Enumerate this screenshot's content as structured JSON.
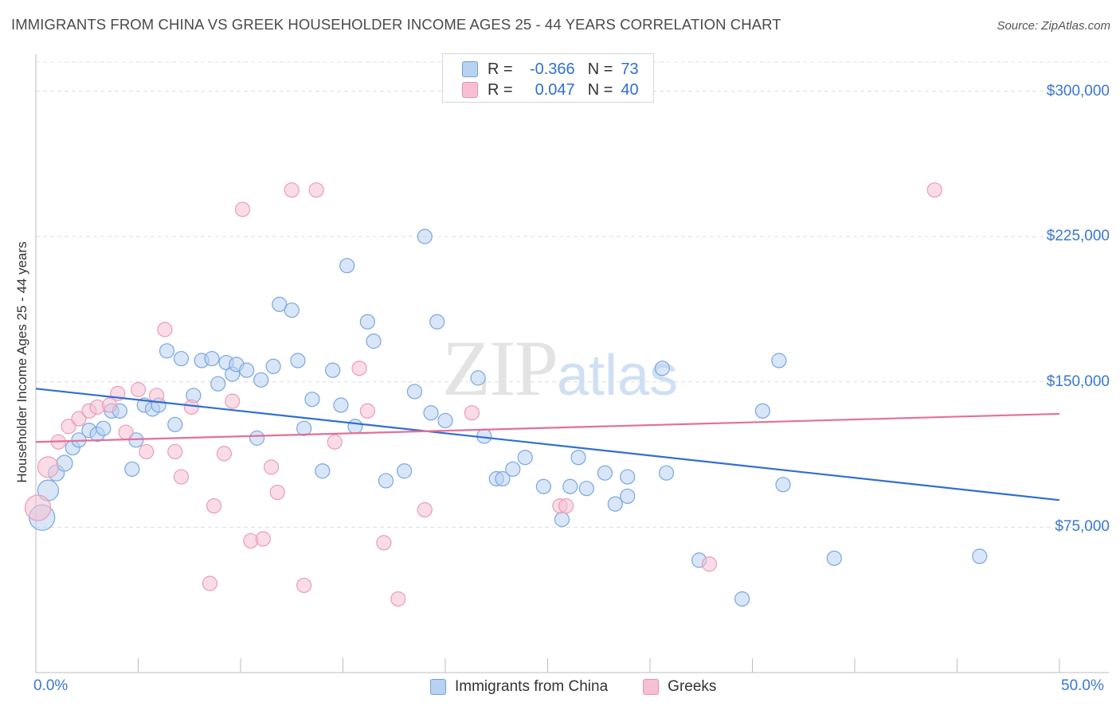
{
  "title": "IMMIGRANTS FROM CHINA VS GREEK HOUSEHOLDER INCOME AGES 25 - 44 YEARS CORRELATION CHART",
  "source": "Source: ZipAtlas.com",
  "watermark": {
    "zip": "ZIP",
    "atlas": "atlas"
  },
  "colors": {
    "blue": "#2f6fd0",
    "blue_fill": "#b8d2f2",
    "pink": "#e46f97",
    "pink_fill": "#f6c0d2",
    "grid": "#dddddd"
  },
  "legend": {
    "rows": [
      {
        "r_label": "R =",
        "r_value": "-0.366",
        "n_label": "N =",
        "n_value": "73"
      },
      {
        "r_label": "R =",
        "r_value": "0.047",
        "n_label": "N =",
        "n_value": "40"
      }
    ]
  },
  "chart_data": {
    "type": "scatter",
    "title": "IMMIGRANTS FROM CHINA VS GREEK HOUSEHOLDER INCOME AGES 25 - 44 YEARS CORRELATION CHART",
    "xlabel": "",
    "ylabel": "Householder Income Ages 25 - 44 years",
    "xlim": [
      0,
      50
    ],
    "ylim": [
      0,
      315000
    ],
    "x_tick_labels": [
      "0.0%",
      "50.0%"
    ],
    "y_ticks": [
      75000,
      150000,
      225000,
      300000
    ],
    "y_tick_labels": [
      "$75,000",
      "$150,000",
      "$225,000",
      "$300,000"
    ],
    "legend_position": "top-center",
    "series": [
      {
        "name": "Immigrants from China",
        "color": "#2f6fd0",
        "R": -0.366,
        "N": 73,
        "trend": {
          "x": [
            0,
            50
          ],
          "y": [
            146500,
            89000
          ]
        },
        "points": [
          {
            "x": 0.3,
            "y": 80000,
            "s": 16
          },
          {
            "x": 0.6,
            "y": 94000,
            "s": 13
          },
          {
            "x": 1.0,
            "y": 103000,
            "s": 10
          },
          {
            "x": 1.4,
            "y": 108000,
            "s": 10
          },
          {
            "x": 1.8,
            "y": 116000,
            "s": 9
          },
          {
            "x": 2.1,
            "y": 120000,
            "s": 9
          },
          {
            "x": 2.6,
            "y": 125000,
            "s": 9
          },
          {
            "x": 3.0,
            "y": 123000,
            "s": 9
          },
          {
            "x": 3.3,
            "y": 126000,
            "s": 9
          },
          {
            "x": 3.7,
            "y": 135000,
            "s": 9
          },
          {
            "x": 4.1,
            "y": 135000,
            "s": 9
          },
          {
            "x": 4.7,
            "y": 105000,
            "s": 9
          },
          {
            "x": 4.9,
            "y": 120000,
            "s": 9
          },
          {
            "x": 5.3,
            "y": 138000,
            "s": 9
          },
          {
            "x": 5.7,
            "y": 136000,
            "s": 9
          },
          {
            "x": 6.0,
            "y": 138000,
            "s": 9
          },
          {
            "x": 6.4,
            "y": 166000,
            "s": 9
          },
          {
            "x": 6.8,
            "y": 128000,
            "s": 9
          },
          {
            "x": 7.1,
            "y": 162000,
            "s": 9
          },
          {
            "x": 7.7,
            "y": 143000,
            "s": 9
          },
          {
            "x": 8.1,
            "y": 161000,
            "s": 9
          },
          {
            "x": 8.6,
            "y": 162000,
            "s": 9
          },
          {
            "x": 8.9,
            "y": 149000,
            "s": 9
          },
          {
            "x": 9.3,
            "y": 160000,
            "s": 9
          },
          {
            "x": 9.6,
            "y": 154000,
            "s": 9
          },
          {
            "x": 9.8,
            "y": 159000,
            "s": 9
          },
          {
            "x": 10.3,
            "y": 156000,
            "s": 9
          },
          {
            "x": 10.8,
            "y": 121000,
            "s": 9
          },
          {
            "x": 11.0,
            "y": 151000,
            "s": 9
          },
          {
            "x": 11.6,
            "y": 158000,
            "s": 9
          },
          {
            "x": 11.9,
            "y": 190000,
            "s": 9
          },
          {
            "x": 12.5,
            "y": 187000,
            "s": 9
          },
          {
            "x": 12.8,
            "y": 161000,
            "s": 9
          },
          {
            "x": 13.1,
            "y": 126000,
            "s": 9
          },
          {
            "x": 13.5,
            "y": 141000,
            "s": 9
          },
          {
            "x": 14.0,
            "y": 104000,
            "s": 9
          },
          {
            "x": 14.5,
            "y": 156000,
            "s": 9
          },
          {
            "x": 14.9,
            "y": 138000,
            "s": 9
          },
          {
            "x": 15.2,
            "y": 210000,
            "s": 9
          },
          {
            "x": 15.6,
            "y": 127000,
            "s": 9
          },
          {
            "x": 16.2,
            "y": 181000,
            "s": 9
          },
          {
            "x": 16.5,
            "y": 171000,
            "s": 9
          },
          {
            "x": 17.1,
            "y": 99000,
            "s": 9
          },
          {
            "x": 18.0,
            "y": 104000,
            "s": 9
          },
          {
            "x": 18.5,
            "y": 145000,
            "s": 9
          },
          {
            "x": 19.0,
            "y": 225000,
            "s": 9
          },
          {
            "x": 19.3,
            "y": 134000,
            "s": 9
          },
          {
            "x": 19.6,
            "y": 181000,
            "s": 9
          },
          {
            "x": 20.0,
            "y": 130000,
            "s": 9
          },
          {
            "x": 21.6,
            "y": 152000,
            "s": 9
          },
          {
            "x": 21.9,
            "y": 122000,
            "s": 9
          },
          {
            "x": 22.5,
            "y": 100000,
            "s": 9
          },
          {
            "x": 22.8,
            "y": 100000,
            "s": 9
          },
          {
            "x": 23.3,
            "y": 105000,
            "s": 9
          },
          {
            "x": 23.9,
            "y": 111000,
            "s": 9
          },
          {
            "x": 24.8,
            "y": 96000,
            "s": 9
          },
          {
            "x": 25.7,
            "y": 79000,
            "s": 9
          },
          {
            "x": 26.1,
            "y": 96000,
            "s": 9
          },
          {
            "x": 26.5,
            "y": 111000,
            "s": 9
          },
          {
            "x": 26.9,
            "y": 95000,
            "s": 9
          },
          {
            "x": 27.8,
            "y": 103000,
            "s": 9
          },
          {
            "x": 28.3,
            "y": 87000,
            "s": 9
          },
          {
            "x": 28.9,
            "y": 91000,
            "s": 9
          },
          {
            "x": 28.9,
            "y": 101000,
            "s": 9
          },
          {
            "x": 30.6,
            "y": 157000,
            "s": 9
          },
          {
            "x": 30.8,
            "y": 103000,
            "s": 9
          },
          {
            "x": 32.4,
            "y": 58000,
            "s": 9
          },
          {
            "x": 34.5,
            "y": 38000,
            "s": 9
          },
          {
            "x": 35.5,
            "y": 135000,
            "s": 9
          },
          {
            "x": 36.3,
            "y": 161000,
            "s": 9
          },
          {
            "x": 36.5,
            "y": 97000,
            "s": 9
          },
          {
            "x": 39.0,
            "y": 59000,
            "s": 9
          },
          {
            "x": 46.1,
            "y": 60000,
            "s": 9
          }
        ]
      },
      {
        "name": "Greeks",
        "color": "#e46f97",
        "R": 0.047,
        "N": 40,
        "trend": {
          "x": [
            0,
            50
          ],
          "y": [
            119000,
            133500
          ]
        },
        "points": [
          {
            "x": 0.1,
            "y": 85000,
            "s": 16
          },
          {
            "x": 0.6,
            "y": 106000,
            "s": 13
          },
          {
            "x": 1.1,
            "y": 119000,
            "s": 9
          },
          {
            "x": 1.6,
            "y": 127000,
            "s": 9
          },
          {
            "x": 2.1,
            "y": 131000,
            "s": 9
          },
          {
            "x": 2.6,
            "y": 135000,
            "s": 9
          },
          {
            "x": 3.0,
            "y": 137000,
            "s": 9
          },
          {
            "x": 3.6,
            "y": 138000,
            "s": 9
          },
          {
            "x": 4.0,
            "y": 144000,
            "s": 9
          },
          {
            "x": 4.4,
            "y": 124000,
            "s": 9
          },
          {
            "x": 5.0,
            "y": 146000,
            "s": 9
          },
          {
            "x": 5.4,
            "y": 114000,
            "s": 9
          },
          {
            "x": 5.9,
            "y": 143000,
            "s": 9
          },
          {
            "x": 6.3,
            "y": 177000,
            "s": 9
          },
          {
            "x": 6.8,
            "y": 114000,
            "s": 9
          },
          {
            "x": 7.1,
            "y": 101000,
            "s": 9
          },
          {
            "x": 7.6,
            "y": 137000,
            "s": 9
          },
          {
            "x": 8.5,
            "y": 46000,
            "s": 9
          },
          {
            "x": 8.7,
            "y": 86000,
            "s": 9
          },
          {
            "x": 9.2,
            "y": 113000,
            "s": 9
          },
          {
            "x": 9.6,
            "y": 140000,
            "s": 9
          },
          {
            "x": 10.1,
            "y": 239000,
            "s": 9
          },
          {
            "x": 10.5,
            "y": 68000,
            "s": 9
          },
          {
            "x": 11.1,
            "y": 69000,
            "s": 9
          },
          {
            "x": 11.5,
            "y": 106000,
            "s": 9
          },
          {
            "x": 11.8,
            "y": 93000,
            "s": 9
          },
          {
            "x": 12.5,
            "y": 249000,
            "s": 9
          },
          {
            "x": 13.1,
            "y": 45000,
            "s": 9
          },
          {
            "x": 13.7,
            "y": 249000,
            "s": 9
          },
          {
            "x": 14.6,
            "y": 119000,
            "s": 9
          },
          {
            "x": 15.8,
            "y": 157000,
            "s": 9
          },
          {
            "x": 16.2,
            "y": 135000,
            "s": 9
          },
          {
            "x": 17.0,
            "y": 67000,
            "s": 9
          },
          {
            "x": 17.7,
            "y": 38000,
            "s": 9
          },
          {
            "x": 19.0,
            "y": 84000,
            "s": 9
          },
          {
            "x": 21.3,
            "y": 134000,
            "s": 9
          },
          {
            "x": 25.6,
            "y": 86000,
            "s": 9
          },
          {
            "x": 25.9,
            "y": 86000,
            "s": 9
          },
          {
            "x": 32.9,
            "y": 56000,
            "s": 9
          },
          {
            "x": 43.9,
            "y": 249000,
            "s": 9
          }
        ]
      }
    ]
  },
  "bottom_legend": {
    "items": [
      {
        "label": "Immigrants from China"
      },
      {
        "label": "Greeks"
      }
    ]
  }
}
